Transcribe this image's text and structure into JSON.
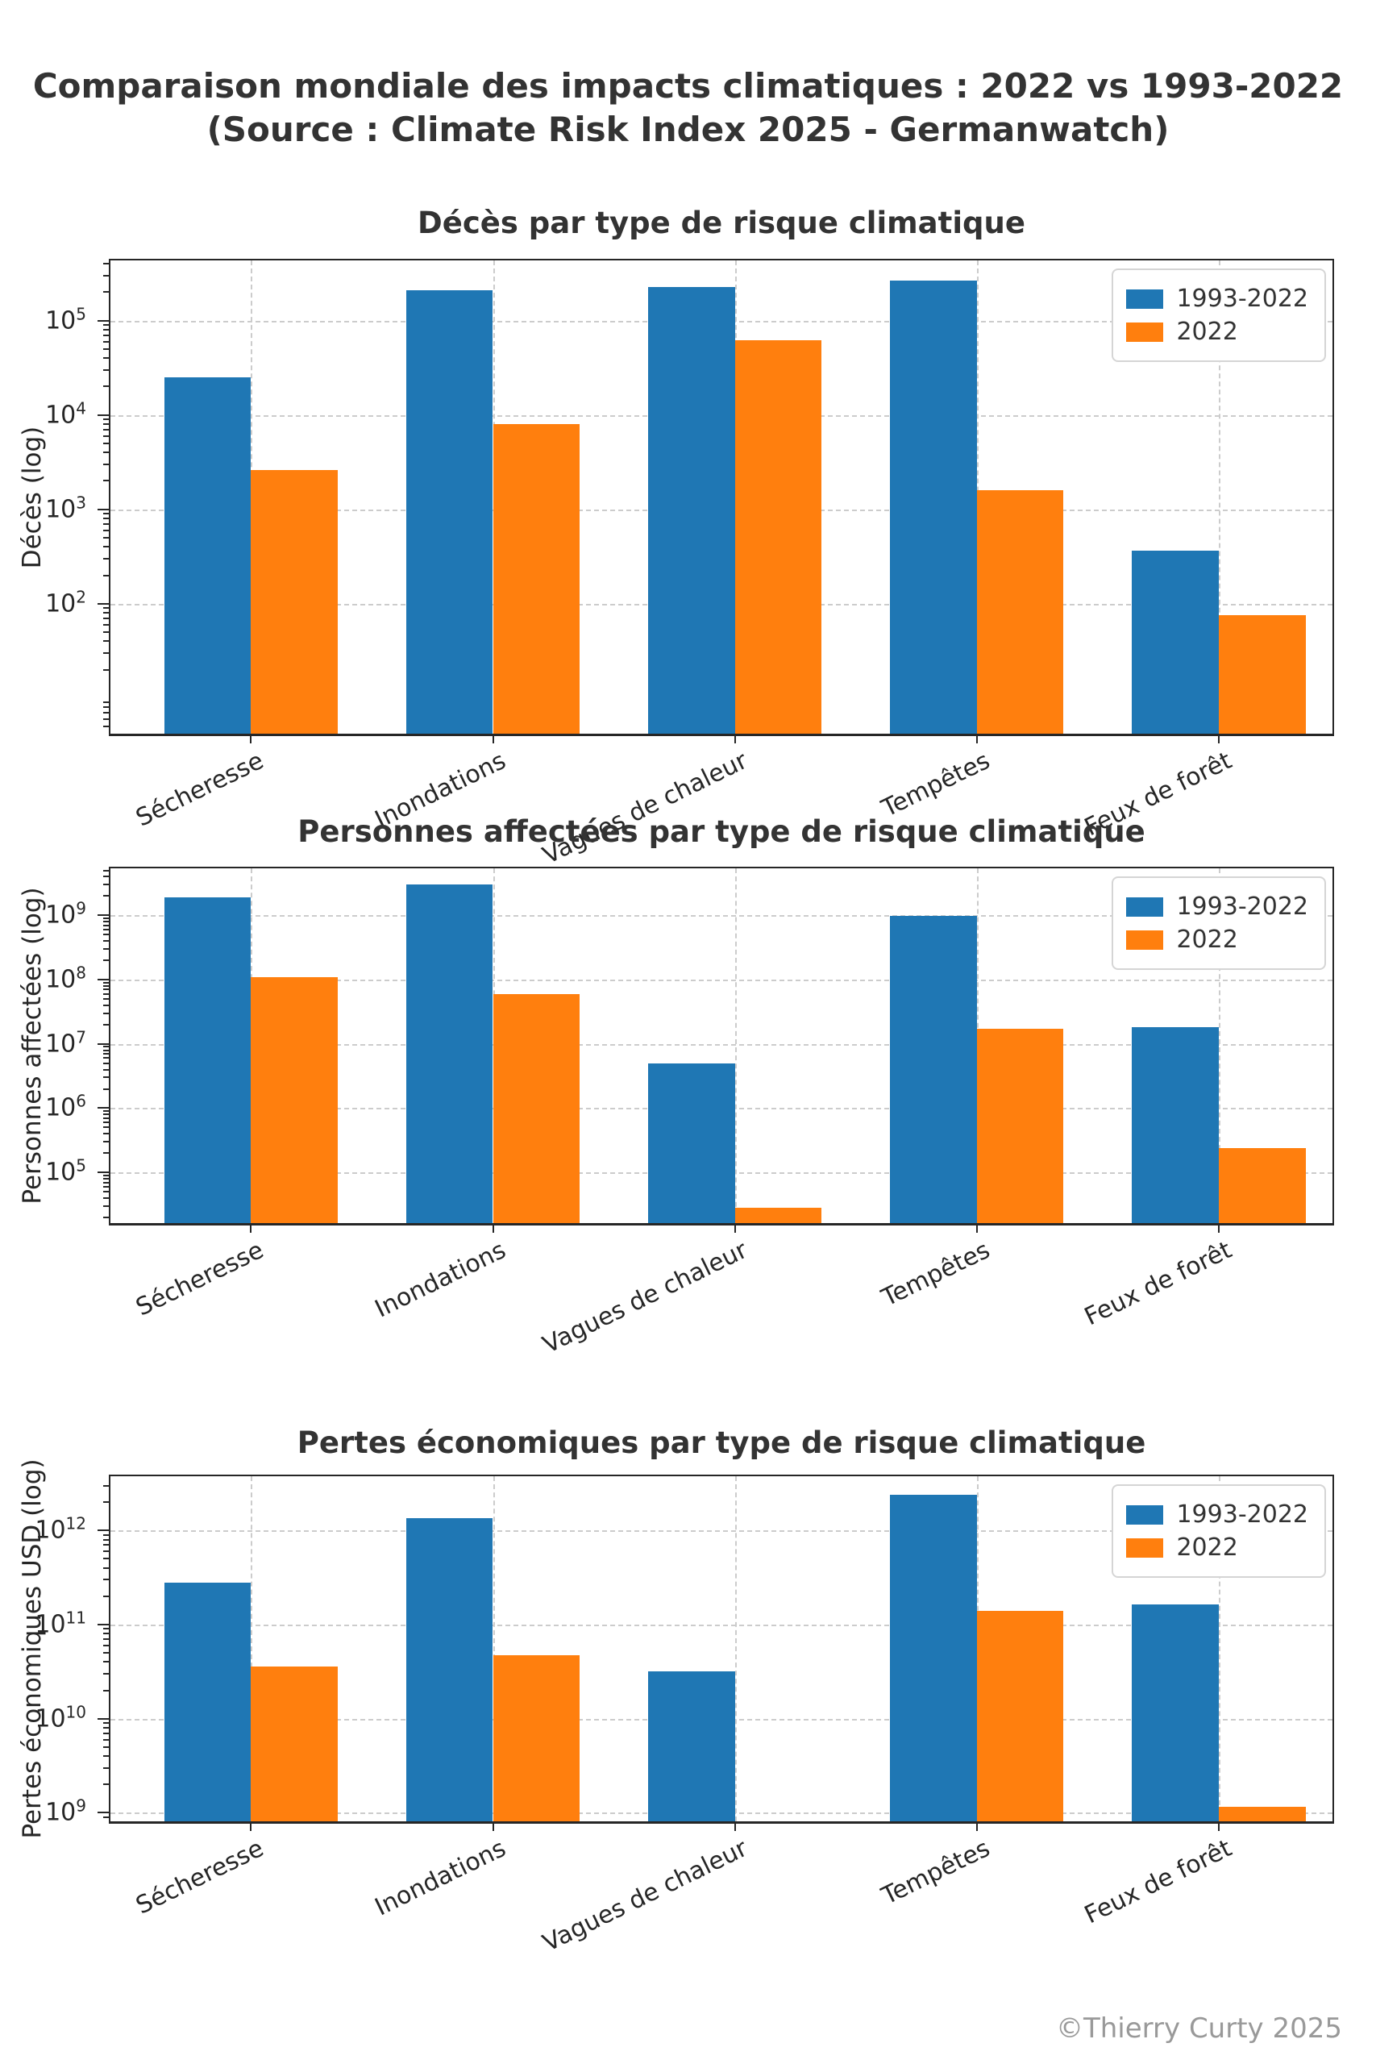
{
  "figure": {
    "title_line1": "Comparaison mondiale des impacts climatiques : 2022 vs 1993-2022",
    "title_line2": "(Source : Climate Risk Index 2025 - Germanwatch)",
    "footer": "©Thierry Curty 2025"
  },
  "colors": {
    "series_1993_2022": "#1f77b4",
    "series_2022": "#ff7f0e",
    "grid": "#cccccc",
    "text": "#333333",
    "footer": "#999999"
  },
  "chart_data": [
    {
      "type": "bar",
      "log_scale": true,
      "title": "Décès par type de risque climatique",
      "ylabel": "Décès (log)",
      "xlabel": "",
      "categories": [
        "Sécheresse",
        "Inondations",
        "Vagues de chaleur",
        "Tempêtes",
        "Feux de forêt"
      ],
      "series": [
        {
          "name": "1993-2022",
          "color": "#1f77b4",
          "values": [
            25000,
            210000,
            225000,
            265000,
            365
          ]
        },
        {
          "name": "2022",
          "color": "#ff7f0e",
          "values": [
            2600,
            8000,
            62000,
            1600,
            76
          ]
        }
      ],
      "yticks_exponents": [
        2,
        3,
        4,
        5
      ],
      "ylim": [
        4.2,
        433000
      ],
      "grid": true,
      "legend_position": "top-right"
    },
    {
      "type": "bar",
      "log_scale": true,
      "title": "Personnes affectées par type de risque climatique",
      "ylabel": "Personnes affectées (log)",
      "xlabel": "",
      "categories": [
        "Sécheresse",
        "Inondations",
        "Vagues de chaleur",
        "Tempêtes",
        "Feux de forêt"
      ],
      "series": [
        {
          "name": "1993-2022",
          "color": "#1f77b4",
          "values": [
            1900000000,
            3000000000,
            5000000,
            980000000,
            18000000
          ]
        },
        {
          "name": "2022",
          "color": "#ff7f0e",
          "values": [
            110000000,
            59000000,
            28000,
            17000000,
            240000
          ]
        }
      ],
      "yticks_exponents": [
        5,
        6,
        7,
        8,
        9
      ],
      "ylim": [
        16300,
        5400000000
      ],
      "grid": true,
      "legend_position": "top-right"
    },
    {
      "type": "bar",
      "log_scale": true,
      "title": "Pertes économiques par type de risque climatique",
      "ylabel": "Pertes économiques USD (log)",
      "xlabel": "",
      "categories": [
        "Sécheresse",
        "Inondations",
        "Vagues de chaleur",
        "Tempêtes",
        "Feux de forêt"
      ],
      "series": [
        {
          "name": "1993-2022",
          "color": "#1f77b4",
          "values": [
            280000000000,
            1350000000000,
            32000000000,
            2400000000000,
            165000000000
          ]
        },
        {
          "name": "2022",
          "color": "#ff7f0e",
          "values": [
            36000000000,
            47000000000,
            null,
            140000000000,
            1150000000
          ]
        }
      ],
      "yticks_exponents": [
        9,
        10,
        11,
        12
      ],
      "ylim": [
        810000000,
        3770000000000
      ],
      "grid": true,
      "legend_position": "top-right"
    }
  ]
}
